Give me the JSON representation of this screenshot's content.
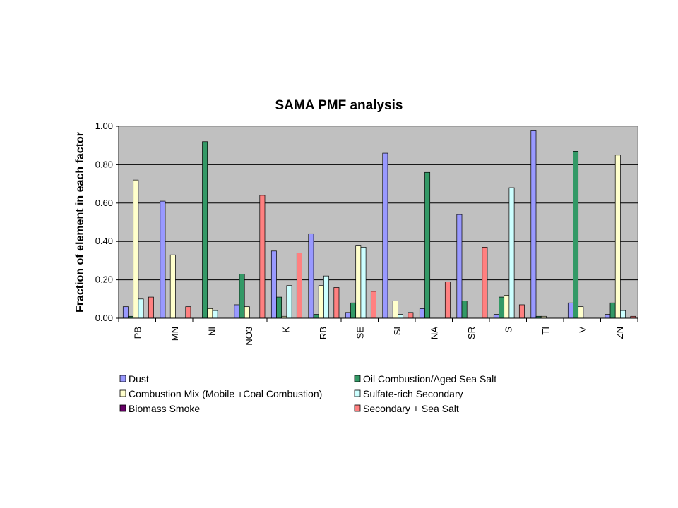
{
  "chart_data": {
    "type": "bar",
    "title": "SAMA PMF analysis",
    "xlabel": "",
    "ylabel": "Fraction of element in each factor",
    "ylim": [
      0,
      1.0
    ],
    "yticks": [
      "0.00",
      "0.20",
      "0.40",
      "0.60",
      "0.80",
      "1.00"
    ],
    "grid": true,
    "legend_position": "bottom",
    "categories": [
      "PB",
      "MN",
      "NI",
      "NO3",
      "K",
      "RB",
      "SE",
      "SI",
      "NA",
      "SR",
      "S",
      "TI",
      "V",
      "ZN"
    ],
    "series": [
      {
        "name": "Dust",
        "color": "#9999ff",
        "values": [
          0.06,
          0.61,
          0.0,
          0.07,
          0.35,
          0.44,
          0.03,
          0.86,
          0.05,
          0.54,
          0.02,
          0.98,
          0.08,
          0.02
        ]
      },
      {
        "name": "Oil Combustion/Aged Sea Salt",
        "color": "#339966",
        "values": [
          0.01,
          0.0,
          0.92,
          0.23,
          0.11,
          0.02,
          0.08,
          0.0,
          0.76,
          0.09,
          0.11,
          0.01,
          0.87,
          0.08
        ]
      },
      {
        "name": "Combustion Mix (Mobile +Coal Combustion)",
        "color": "#ffffcc",
        "values": [
          0.72,
          0.33,
          0.05,
          0.06,
          0.01,
          0.17,
          0.38,
          0.09,
          0.0,
          0.0,
          0.12,
          0.01,
          0.06,
          0.85
        ]
      },
      {
        "name": "Sulfate-rich Secondary",
        "color": "#ccffff",
        "values": [
          0.1,
          0.0,
          0.04,
          0.0,
          0.17,
          0.22,
          0.37,
          0.02,
          0.0,
          0.0,
          0.68,
          0.0,
          0.0,
          0.04
        ]
      },
      {
        "name": "Biomass Smoke",
        "color": "#660066",
        "values": [
          0,
          0,
          0,
          0,
          0,
          0,
          0,
          0,
          0,
          0,
          0,
          0,
          0,
          0
        ]
      },
      {
        "name": "Secondary + Sea Salt",
        "color": "#ff8080",
        "values": [
          0.11,
          0.06,
          0.0,
          0.64,
          0.34,
          0.16,
          0.14,
          0.03,
          0.19,
          0.37,
          0.07,
          0.0,
          0.0,
          0.01
        ]
      }
    ]
  }
}
